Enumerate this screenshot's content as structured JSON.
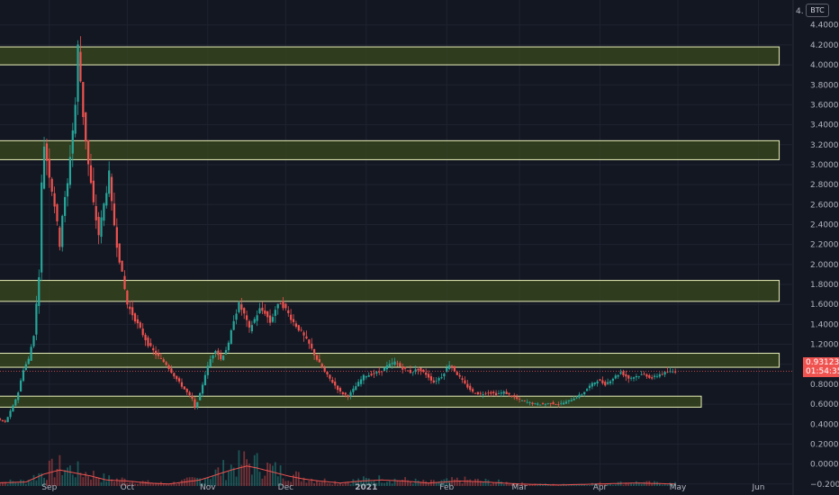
{
  "ticker": "BTC",
  "scale_corner": "4.",
  "last_price": {
    "value": "0.93123",
    "countdown": "01:54:35",
    "color": "#ef5350"
  },
  "colors": {
    "background": "#131722",
    "grid": "#1f2330",
    "up": "#26a69a",
    "down": "#ef5350",
    "zone_fill": "#3b4a1e",
    "zone_border": "#e8f0b8",
    "volume_ma": "#ef5350"
  },
  "chart_data": {
    "type": "candlestick",
    "title": "",
    "xlabel": "",
    "ylabel": "",
    "price_axis": {
      "ylim": [
        -0.22,
        4.65
      ],
      "ticks": [
        "4.40000",
        "4.20000",
        "4.00000",
        "3.80000",
        "3.60000",
        "3.40000",
        "3.20000",
        "3.00000",
        "2.80000",
        "2.60000",
        "2.40000",
        "2.20000",
        "2.00000",
        "1.80000",
        "1.60000",
        "1.40000",
        "1.20000",
        "1.00000",
        "0.80000",
        "0.60000",
        "0.40000",
        "0.20000",
        "0.00000",
        "−0.20000"
      ],
      "tick_values": [
        4.4,
        4.2,
        4.0,
        3.8,
        3.6,
        3.4,
        3.2,
        3.0,
        2.8,
        2.6,
        2.4,
        2.2,
        2.0,
        1.8,
        1.6,
        1.4,
        1.2,
        1.0,
        0.8,
        0.6,
        0.4,
        0.2,
        0.0,
        -0.2
      ]
    },
    "time_axis": {
      "labels": [
        "Sep",
        "Oct",
        "Nov",
        "Dec",
        "2021",
        "Feb",
        "Mar",
        "Apr",
        "May",
        "Jun"
      ],
      "label_days": [
        14,
        44,
        75,
        105,
        136,
        167,
        195,
        226,
        256,
        287
      ],
      "day_range": [
        -5,
        300
      ]
    },
    "grid": true,
    "zones": [
      {
        "from_day": -10,
        "to_day": 295,
        "low": 4.0,
        "high": 4.18
      },
      {
        "from_day": -10,
        "to_day": 295,
        "low": 3.05,
        "high": 3.24
      },
      {
        "from_day": -10,
        "to_day": 295,
        "low": 1.63,
        "high": 1.84
      },
      {
        "from_day": -10,
        "to_day": 295,
        "low": 0.97,
        "high": 1.11
      },
      {
        "from_day": -10,
        "to_day": 265,
        "low": 0.57,
        "high": 0.68
      }
    ],
    "anchors": [
      [
        -8,
        0.62
      ],
      [
        -6,
        0.45
      ],
      [
        -3,
        0.42
      ],
      [
        0,
        0.58
      ],
      [
        2,
        0.72
      ],
      [
        4,
        0.95
      ],
      [
        6,
        1.05
      ],
      [
        8,
        1.3
      ],
      [
        10,
        1.9
      ],
      [
        11,
        2.8
      ],
      [
        12,
        3.2
      ],
      [
        14,
        2.9
      ],
      [
        16,
        2.6
      ],
      [
        18,
        2.2
      ],
      [
        19,
        2.5
      ],
      [
        21,
        2.8
      ],
      [
        22,
        3.1
      ],
      [
        24,
        3.6
      ],
      [
        25,
        4.18
      ],
      [
        27,
        3.5
      ],
      [
        29,
        3.0
      ],
      [
        31,
        2.6
      ],
      [
        33,
        2.3
      ],
      [
        35,
        2.6
      ],
      [
        37,
        2.9
      ],
      [
        38,
        2.6
      ],
      [
        40,
        2.2
      ],
      [
        42,
        1.9
      ],
      [
        44,
        1.6
      ],
      [
        46,
        1.5
      ],
      [
        49,
        1.35
      ],
      [
        52,
        1.2
      ],
      [
        55,
        1.1
      ],
      [
        59,
        1.0
      ],
      [
        63,
        0.85
      ],
      [
        66,
        0.75
      ],
      [
        69,
        0.65
      ],
      [
        70,
        0.56
      ],
      [
        72,
        0.7
      ],
      [
        74,
        0.9
      ],
      [
        76,
        1.05
      ],
      [
        78,
        1.15
      ],
      [
        80,
        1.05
      ],
      [
        83,
        1.2
      ],
      [
        85,
        1.45
      ],
      [
        87,
        1.6
      ],
      [
        89,
        1.5
      ],
      [
        91,
        1.35
      ],
      [
        93,
        1.45
      ],
      [
        95,
        1.55
      ],
      [
        97,
        1.52
      ],
      [
        99,
        1.42
      ],
      [
        101,
        1.55
      ],
      [
        103,
        1.62
      ],
      [
        105,
        1.55
      ],
      [
        108,
        1.42
      ],
      [
        111,
        1.32
      ],
      [
        114,
        1.2
      ],
      [
        117,
        1.05
      ],
      [
        120,
        0.92
      ],
      [
        123,
        0.82
      ],
      [
        126,
        0.72
      ],
      [
        129,
        0.68
      ],
      [
        132,
        0.78
      ],
      [
        135,
        0.88
      ],
      [
        138,
        0.9
      ],
      [
        141,
        0.92
      ],
      [
        144,
        0.98
      ],
      [
        147,
        1.02
      ],
      [
        150,
        0.96
      ],
      [
        153,
        0.92
      ],
      [
        156,
        0.95
      ],
      [
        159,
        0.9
      ],
      [
        162,
        0.82
      ],
      [
        165,
        0.88
      ],
      [
        168,
        1.0
      ],
      [
        171,
        0.9
      ],
      [
        174,
        0.8
      ],
      [
        177,
        0.72
      ],
      [
        180,
        0.7
      ],
      [
        183,
        0.72
      ],
      [
        186,
        0.7
      ],
      [
        189,
        0.72
      ],
      [
        192,
        0.68
      ],
      [
        195,
        0.64
      ],
      [
        198,
        0.62
      ],
      [
        201,
        0.6
      ],
      [
        204,
        0.6
      ],
      [
        207,
        0.61
      ],
      [
        210,
        0.6
      ],
      [
        213,
        0.62
      ],
      [
        216,
        0.66
      ],
      [
        219,
        0.7
      ],
      [
        222,
        0.78
      ],
      [
        225,
        0.84
      ],
      [
        228,
        0.8
      ],
      [
        231,
        0.86
      ],
      [
        234,
        0.92
      ],
      [
        237,
        0.86
      ],
      [
        240,
        0.88
      ],
      [
        243,
        0.9
      ],
      [
        246,
        0.86
      ],
      [
        249,
        0.9
      ],
      [
        252,
        0.92
      ],
      [
        255,
        0.93
      ]
    ],
    "volume_ma": [
      [
        -8,
        0.03
      ],
      [
        5,
        0.04
      ],
      [
        12,
        0.12
      ],
      [
        18,
        0.16
      ],
      [
        24,
        0.13
      ],
      [
        30,
        0.1
      ],
      [
        36,
        0.06
      ],
      [
        44,
        0.05
      ],
      [
        52,
        0.03
      ],
      [
        60,
        0.02
      ],
      [
        66,
        0.04
      ],
      [
        72,
        0.06
      ],
      [
        78,
        0.11
      ],
      [
        84,
        0.16
      ],
      [
        90,
        0.2
      ],
      [
        94,
        0.18
      ],
      [
        100,
        0.14
      ],
      [
        106,
        0.1
      ],
      [
        112,
        0.07
      ],
      [
        118,
        0.05
      ],
      [
        126,
        0.03
      ],
      [
        134,
        0.05
      ],
      [
        142,
        0.06
      ],
      [
        150,
        0.05
      ],
      [
        160,
        0.03
      ],
      [
        172,
        0.05
      ],
      [
        182,
        0.04
      ],
      [
        195,
        0.02
      ],
      [
        210,
        0.01
      ],
      [
        225,
        0.02
      ],
      [
        240,
        0.03
      ],
      [
        255,
        0.02
      ]
    ]
  }
}
